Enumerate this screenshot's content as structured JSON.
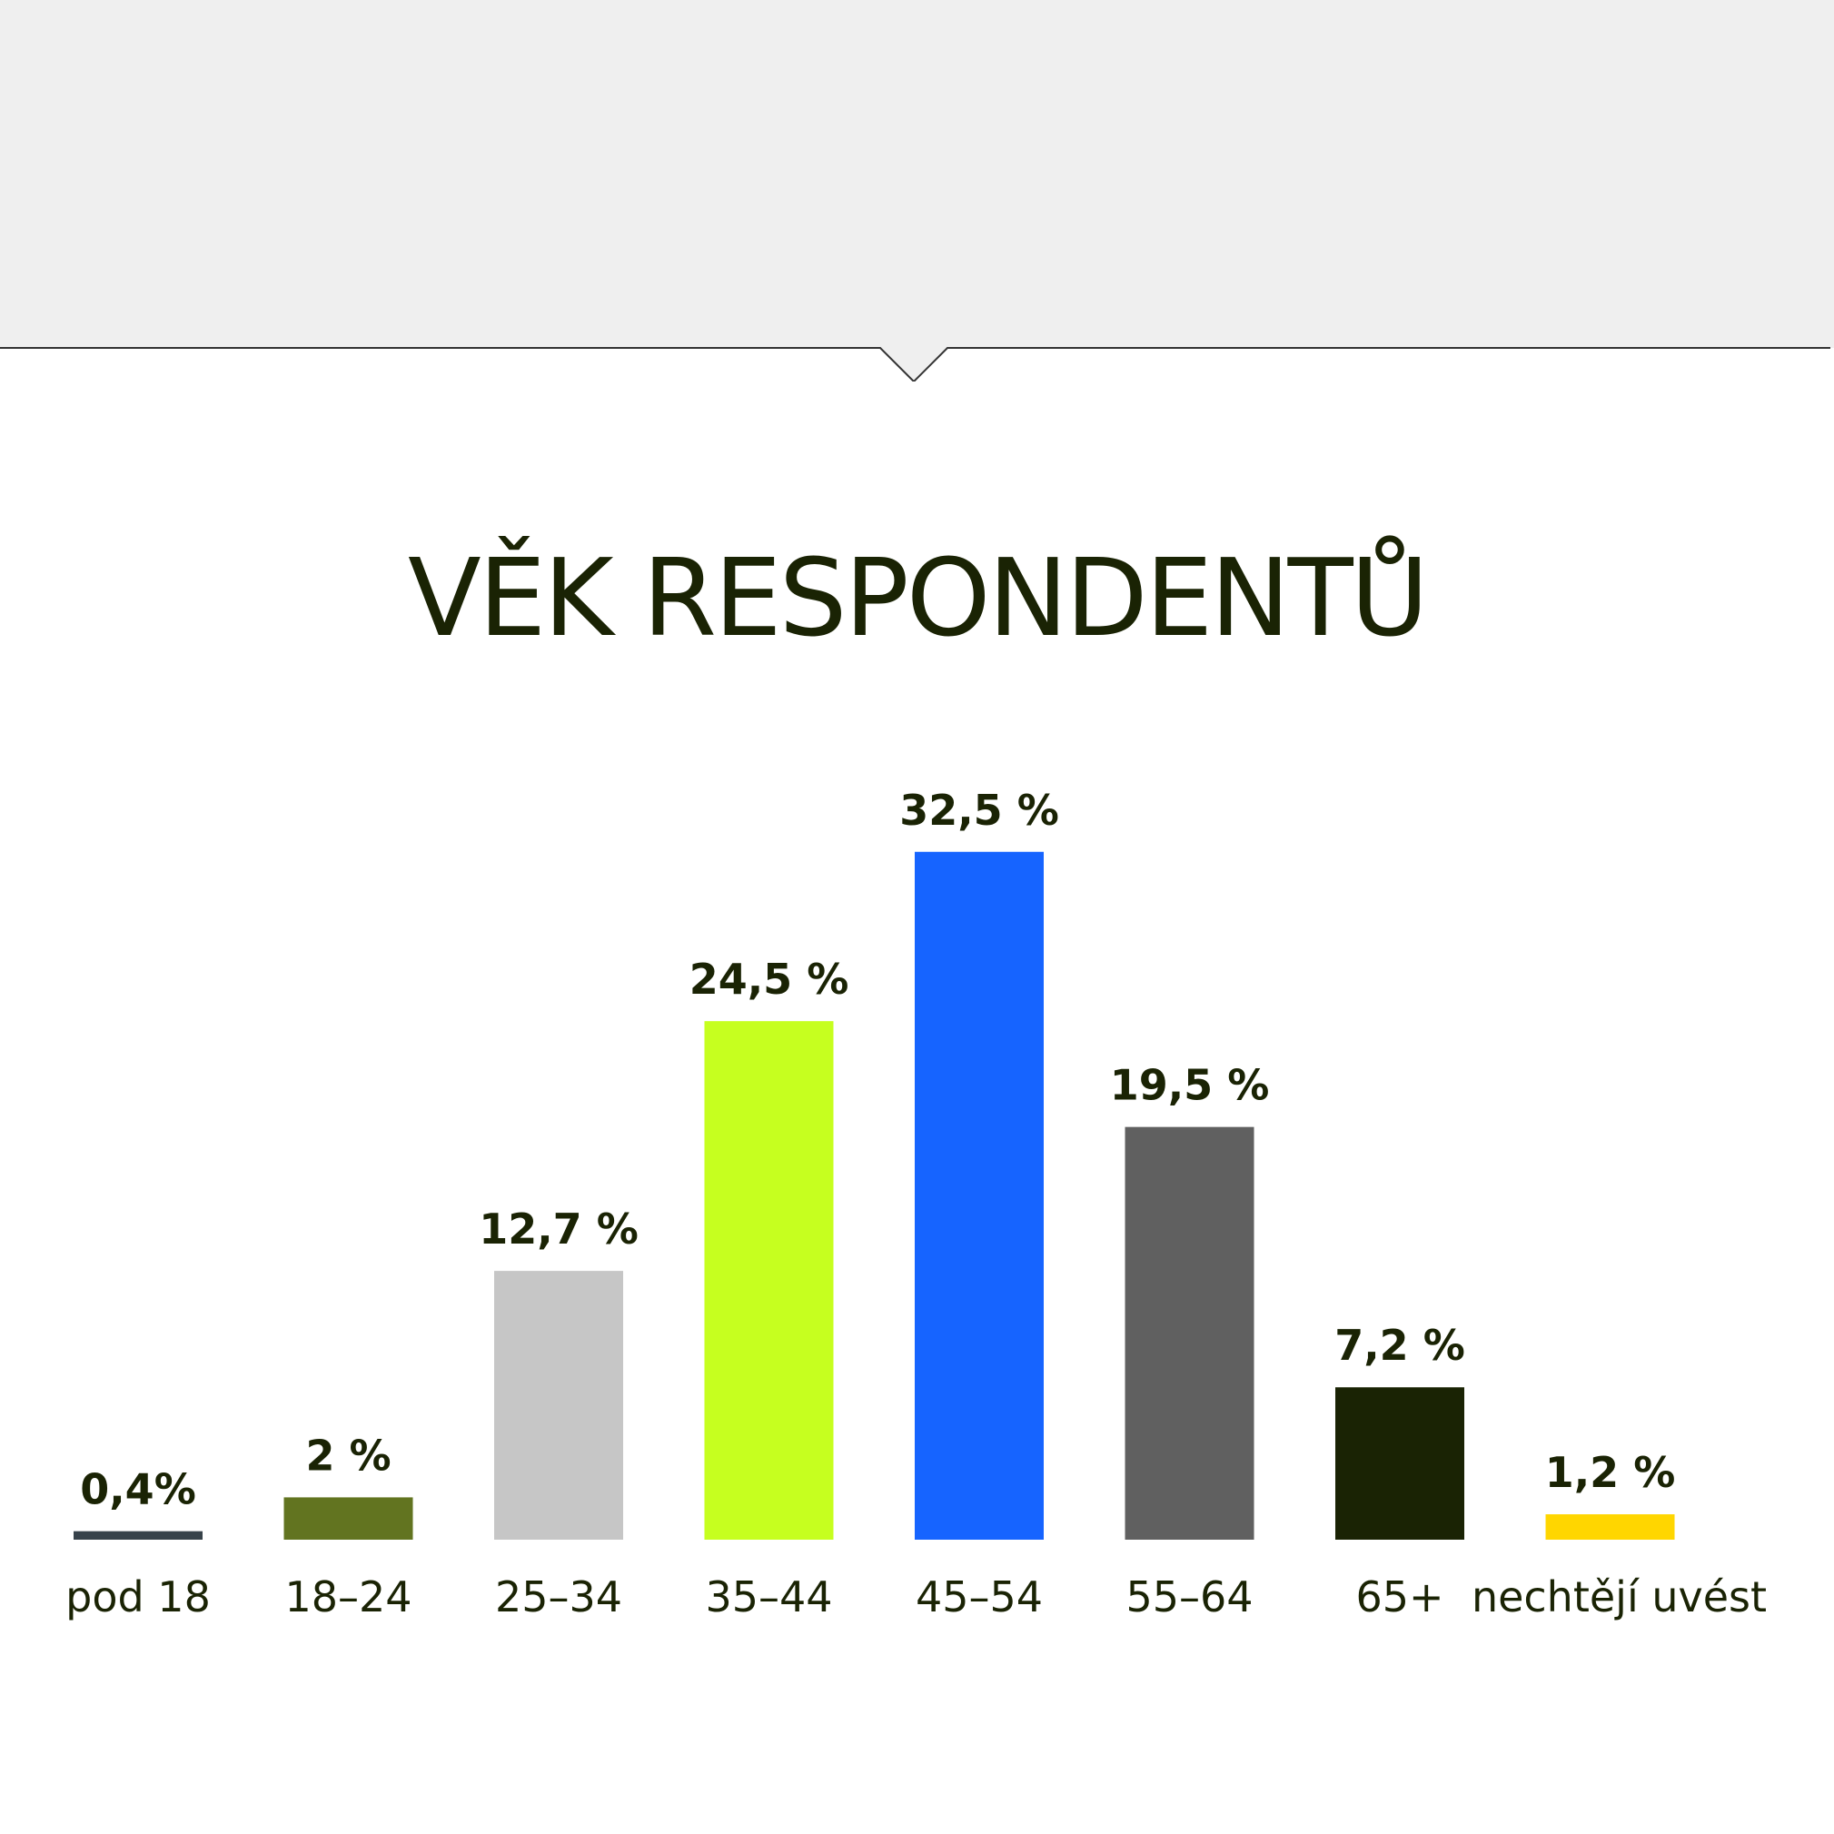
{
  "chart_data": {
    "type": "bar",
    "title": "VĚK RESPONDENTŮ",
    "categories": [
      "pod 18",
      "18–24",
      "25–34",
      "35–44",
      "45–54",
      "55–64",
      "65+",
      "nechtějí uvést"
    ],
    "values": [
      0.4,
      2,
      12.7,
      24.5,
      32.5,
      19.5,
      7.2,
      1.2
    ],
    "value_labels": [
      "0,4%",
      "2 %",
      "12,7 %",
      "24,5 %",
      "32,5 %",
      "19,5 %",
      "7,2 %",
      "1,2 %"
    ],
    "colors": [
      "#37424a",
      "#627420",
      "#c6c6c6",
      "#c6ff1f",
      "#1664ff",
      "#606060",
      "#1a2304",
      "#ffd600"
    ],
    "ylim": [
      0,
      33
    ],
    "grid": false,
    "legend": "none",
    "xlabel": "",
    "ylabel": ""
  },
  "theme": {
    "header_background": "#efefef",
    "header_border": "#333333",
    "text_color": "#1a2304"
  }
}
